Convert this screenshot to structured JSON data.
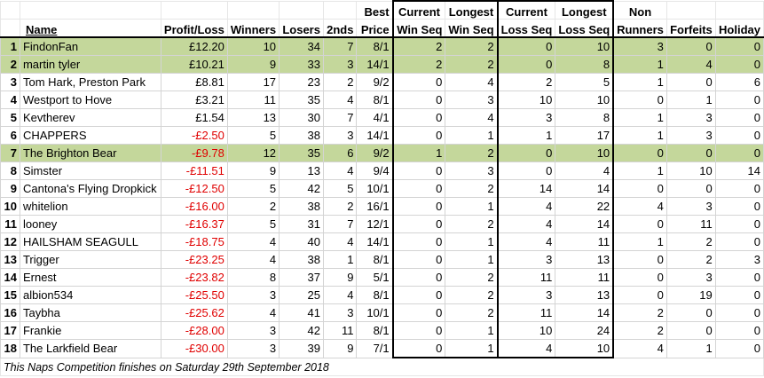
{
  "headers": {
    "name": "Name",
    "profit": "Profit/Loss",
    "winners": "Winners",
    "losers": "Losers",
    "seconds": "2nds",
    "best_price_1": "Best",
    "best_price_2": "Price",
    "cur_win_1": "Current",
    "cur_win_2": "Win Seq",
    "long_win_1": "Longest",
    "long_win_2": "Win Seq",
    "cur_loss_1": "Current",
    "cur_loss_2": "Loss Seq",
    "long_loss_1": "Longest",
    "long_loss_2": "Loss Seq",
    "non_runners_1": "Non",
    "non_runners_2": "Runners",
    "forfeits": "Forfeits",
    "holiday": "Holiday"
  },
  "rows": [
    {
      "pos": "1",
      "name": "FindonFan",
      "profit": "£12.20",
      "winners": "10",
      "losers": "34",
      "seconds": "7",
      "best_price": "8/1",
      "cur_win": "2",
      "long_win": "2",
      "cur_loss": "0",
      "long_loss": "10",
      "non_runners": "3",
      "forfeits": "0",
      "holiday": "0"
    },
    {
      "pos": "2",
      "name": "martin tyler",
      "profit": "£10.21",
      "winners": "9",
      "losers": "33",
      "seconds": "3",
      "best_price": "14/1",
      "cur_win": "2",
      "long_win": "2",
      "cur_loss": "0",
      "long_loss": "8",
      "non_runners": "1",
      "forfeits": "4",
      "holiday": "0"
    },
    {
      "pos": "3",
      "name": "Tom Hark, Preston Park",
      "profit": "£8.81",
      "winners": "17",
      "losers": "23",
      "seconds": "2",
      "best_price": "9/2",
      "cur_win": "0",
      "long_win": "4",
      "cur_loss": "2",
      "long_loss": "5",
      "non_runners": "1",
      "forfeits": "0",
      "holiday": "6"
    },
    {
      "pos": "4",
      "name": "Westport to Hove",
      "profit": "£3.21",
      "winners": "11",
      "losers": "35",
      "seconds": "4",
      "best_price": "8/1",
      "cur_win": "0",
      "long_win": "3",
      "cur_loss": "10",
      "long_loss": "10",
      "non_runners": "0",
      "forfeits": "1",
      "holiday": "0"
    },
    {
      "pos": "5",
      "name": "Kevtherev",
      "profit": "£1.54",
      "winners": "13",
      "losers": "30",
      "seconds": "7",
      "best_price": "4/1",
      "cur_win": "0",
      "long_win": "4",
      "cur_loss": "3",
      "long_loss": "8",
      "non_runners": "1",
      "forfeits": "3",
      "holiday": "0"
    },
    {
      "pos": "6",
      "name": "CHAPPERS",
      "profit": "-£2.50",
      "winners": "5",
      "losers": "38",
      "seconds": "3",
      "best_price": "14/1",
      "cur_win": "0",
      "long_win": "1",
      "cur_loss": "1",
      "long_loss": "17",
      "non_runners": "1",
      "forfeits": "3",
      "holiday": "0"
    },
    {
      "pos": "7",
      "name": "The Brighton Bear",
      "profit": "-£9.78",
      "winners": "12",
      "losers": "35",
      "seconds": "6",
      "best_price": "9/2",
      "cur_win": "1",
      "long_win": "2",
      "cur_loss": "0",
      "long_loss": "10",
      "non_runners": "0",
      "forfeits": "0",
      "holiday": "0"
    },
    {
      "pos": "8",
      "name": "Simster",
      "profit": "-£11.51",
      "winners": "9",
      "losers": "13",
      "seconds": "4",
      "best_price": "9/4",
      "cur_win": "0",
      "long_win": "3",
      "cur_loss": "0",
      "long_loss": "4",
      "non_runners": "1",
      "forfeits": "10",
      "holiday": "14"
    },
    {
      "pos": "9",
      "name": "Cantona's Flying Dropkick",
      "profit": "-£12.50",
      "winners": "5",
      "losers": "42",
      "seconds": "5",
      "best_price": "10/1",
      "cur_win": "0",
      "long_win": "2",
      "cur_loss": "14",
      "long_loss": "14",
      "non_runners": "0",
      "forfeits": "0",
      "holiday": "0"
    },
    {
      "pos": "10",
      "name": "whitelion",
      "profit": "-£16.00",
      "winners": "2",
      "losers": "38",
      "seconds": "2",
      "best_price": "16/1",
      "cur_win": "0",
      "long_win": "1",
      "cur_loss": "4",
      "long_loss": "22",
      "non_runners": "4",
      "forfeits": "3",
      "holiday": "0"
    },
    {
      "pos": "11",
      "name": "looney",
      "profit": "-£16.37",
      "winners": "5",
      "losers": "31",
      "seconds": "7",
      "best_price": "12/1",
      "cur_win": "0",
      "long_win": "2",
      "cur_loss": "4",
      "long_loss": "14",
      "non_runners": "0",
      "forfeits": "11",
      "holiday": "0"
    },
    {
      "pos": "12",
      "name": "HAILSHAM SEAGULL",
      "profit": "-£18.75",
      "winners": "4",
      "losers": "40",
      "seconds": "4",
      "best_price": "14/1",
      "cur_win": "0",
      "long_win": "1",
      "cur_loss": "4",
      "long_loss": "11",
      "non_runners": "1",
      "forfeits": "2",
      "holiday": "0"
    },
    {
      "pos": "13",
      "name": "Trigger",
      "profit": "-£23.25",
      "winners": "4",
      "losers": "38",
      "seconds": "1",
      "best_price": "8/1",
      "cur_win": "0",
      "long_win": "1",
      "cur_loss": "3",
      "long_loss": "13",
      "non_runners": "0",
      "forfeits": "2",
      "holiday": "3"
    },
    {
      "pos": "14",
      "name": "Ernest",
      "profit": "-£23.82",
      "winners": "8",
      "losers": "37",
      "seconds": "9",
      "best_price": "5/1",
      "cur_win": "0",
      "long_win": "2",
      "cur_loss": "11",
      "long_loss": "11",
      "non_runners": "0",
      "forfeits": "3",
      "holiday": "0"
    },
    {
      "pos": "15",
      "name": "albion534",
      "profit": "-£25.50",
      "winners": "3",
      "losers": "25",
      "seconds": "4",
      "best_price": "8/1",
      "cur_win": "0",
      "long_win": "2",
      "cur_loss": "3",
      "long_loss": "13",
      "non_runners": "0",
      "forfeits": "19",
      "holiday": "0"
    },
    {
      "pos": "16",
      "name": "Taybha",
      "profit": "-£25.62",
      "winners": "4",
      "losers": "41",
      "seconds": "3",
      "best_price": "10/1",
      "cur_win": "0",
      "long_win": "2",
      "cur_loss": "11",
      "long_loss": "14",
      "non_runners": "2",
      "forfeits": "0",
      "holiday": "0"
    },
    {
      "pos": "17",
      "name": "Frankie",
      "profit": "-£28.00",
      "winners": "3",
      "losers": "42",
      "seconds": "11",
      "best_price": "8/1",
      "cur_win": "0",
      "long_win": "1",
      "cur_loss": "10",
      "long_loss": "24",
      "non_runners": "2",
      "forfeits": "0",
      "holiday": "0"
    },
    {
      "pos": "18",
      "name": "The Larkfield Bear",
      "profit": "-£30.00",
      "winners": "3",
      "losers": "39",
      "seconds": "9",
      "best_price": "7/1",
      "cur_win": "0",
      "long_win": "1",
      "cur_loss": "4",
      "long_loss": "10",
      "non_runners": "4",
      "forfeits": "1",
      "holiday": "0"
    }
  ],
  "highlighted_positions": [
    "1",
    "2",
    "7"
  ],
  "highlight_color": "#c4d79b",
  "negative_color": "#e00000",
  "footer": "This Naps Competition finishes on Saturday 29th September 2018"
}
